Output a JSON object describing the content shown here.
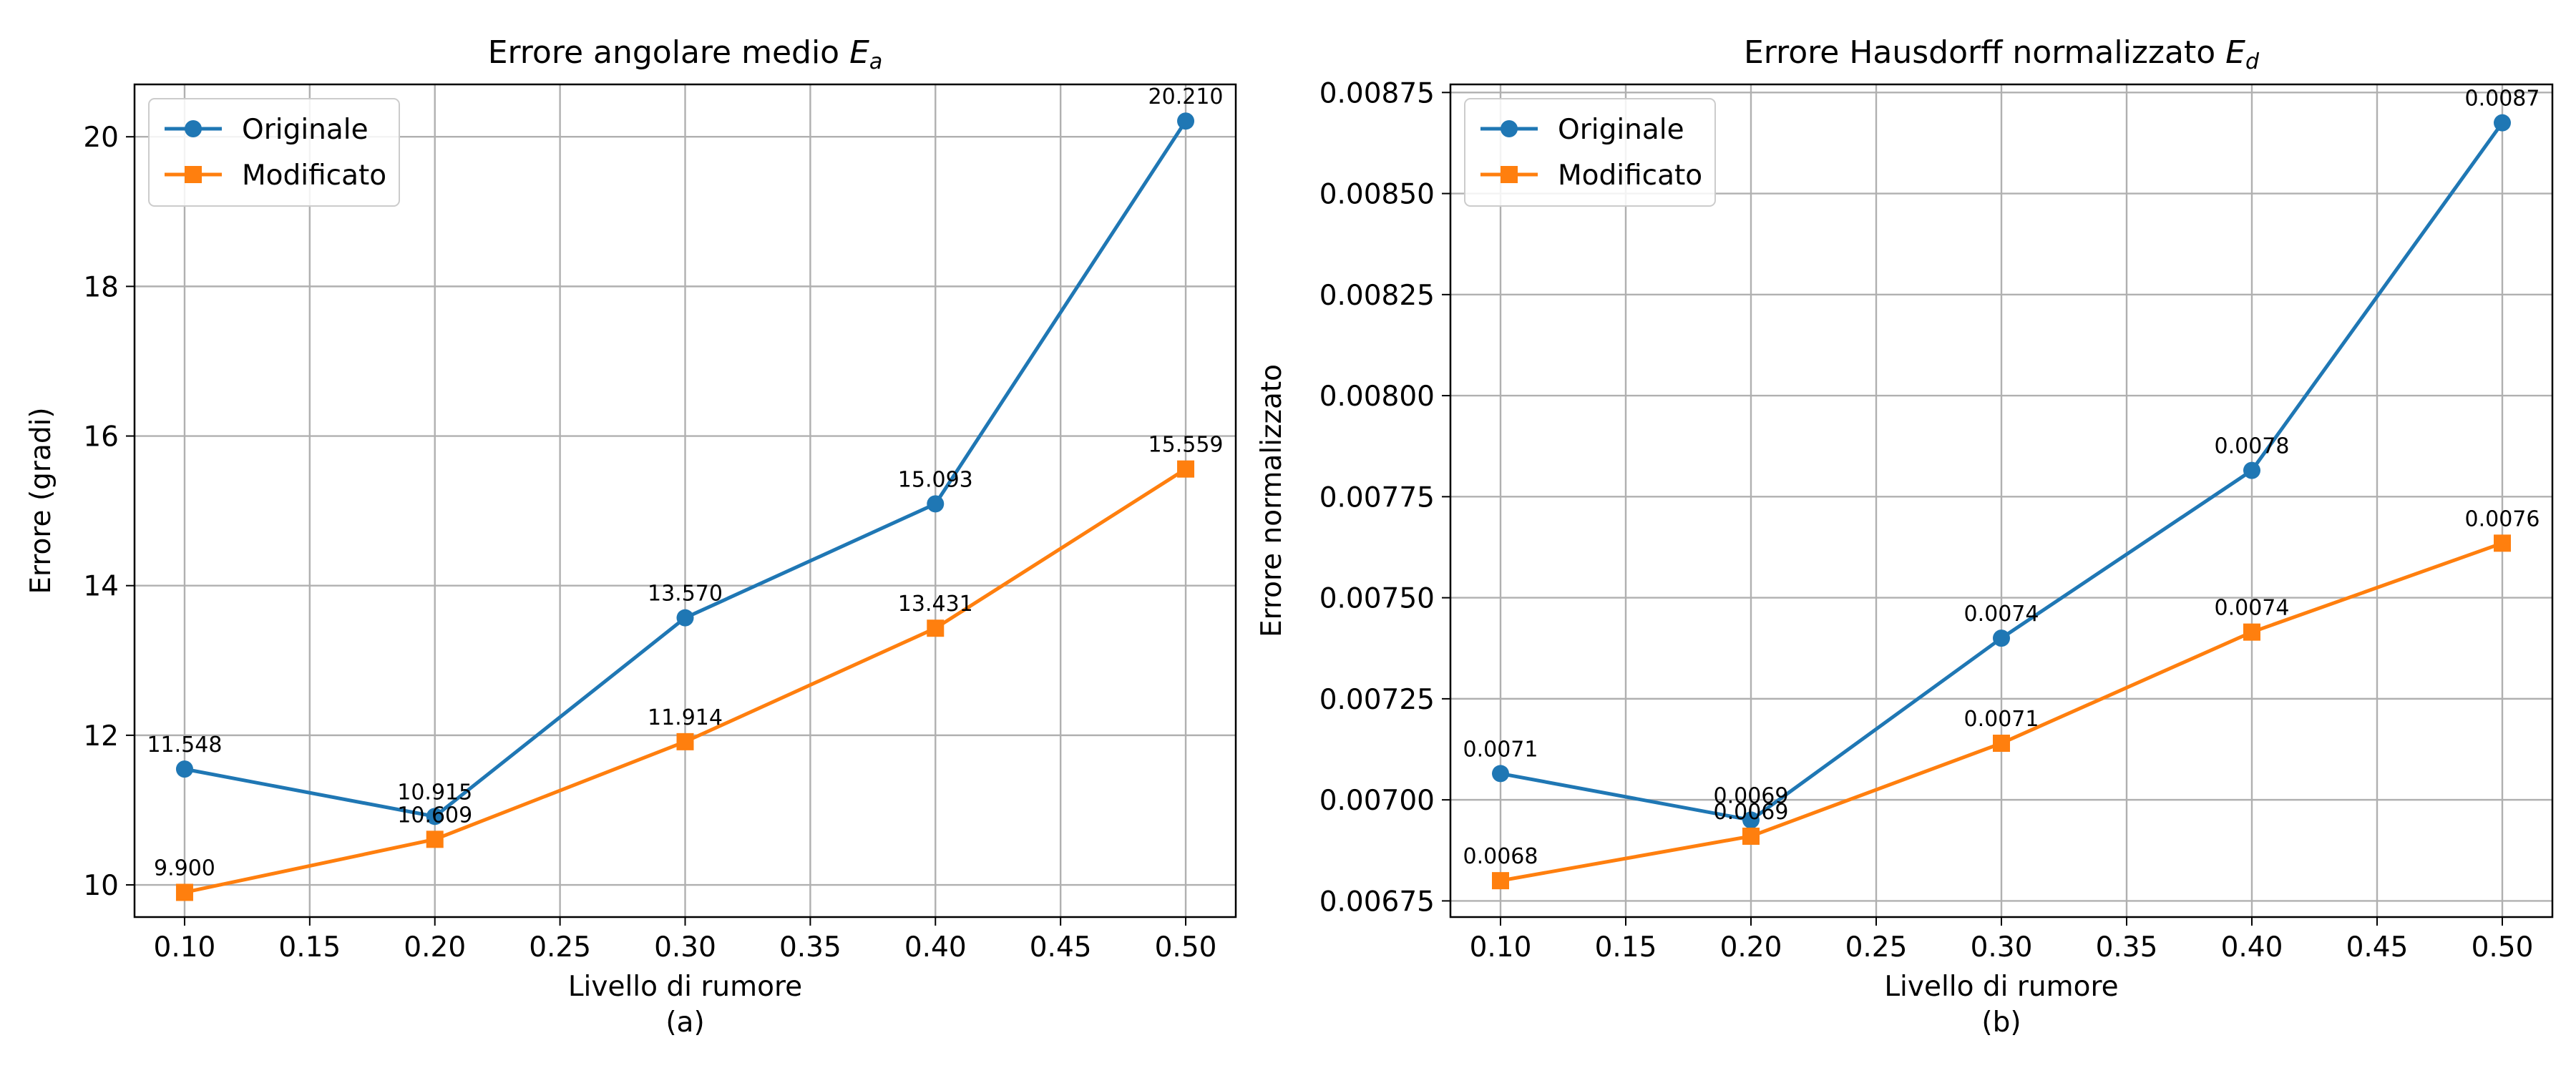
{
  "chart_data": [
    {
      "type": "line",
      "title": "Errore angolare medio",
      "title_var": "E",
      "title_sub": "a",
      "xlabel": "Livello di rumore",
      "ylabel": "Errore (gradi)",
      "caption": "(a)",
      "x": [
        0.1,
        0.2,
        0.3,
        0.4,
        0.5
      ],
      "xlim": [
        0.08,
        0.52
      ],
      "ylim": [
        9.57,
        20.7
      ],
      "xticks": [
        0.1,
        0.15,
        0.2,
        0.25,
        0.3,
        0.35,
        0.4,
        0.45,
        0.5
      ],
      "xtick_labels": [
        "0.10",
        "0.15",
        "0.20",
        "0.25",
        "0.30",
        "0.35",
        "0.40",
        "0.45",
        "0.50"
      ],
      "yticks": [
        10,
        12,
        14,
        16,
        18,
        20
      ],
      "ytick_labels": [
        "10",
        "12",
        "14",
        "16",
        "18",
        "20"
      ],
      "grid": true,
      "legend_position": "top-left",
      "series": [
        {
          "name": "Originale",
          "marker": "circle",
          "color": "#1f77b4",
          "values": [
            11.548,
            10.915,
            13.57,
            15.093,
            20.21
          ],
          "labels": [
            "11.548",
            "10.915",
            "13.570",
            "15.093",
            "20.210"
          ]
        },
        {
          "name": "Modificato",
          "marker": "square",
          "color": "#ff7f0e",
          "values": [
            9.9,
            10.609,
            11.914,
            13.431,
            15.559
          ],
          "labels": [
            "9.900",
            "10.609",
            "11.914",
            "13.431",
            "15.559"
          ]
        }
      ]
    },
    {
      "type": "line",
      "title": "Errore Hausdorff normalizzato",
      "title_var": "E",
      "title_sub": "d",
      "xlabel": "Livello di rumore",
      "ylabel": "Errore normalizzato",
      "caption": "(b)",
      "x": [
        0.1,
        0.2,
        0.3,
        0.4,
        0.5
      ],
      "xlim": [
        0.08,
        0.52
      ],
      "ylim": [
        0.00671,
        0.00877
      ],
      "xticks": [
        0.1,
        0.15,
        0.2,
        0.25,
        0.3,
        0.35,
        0.4,
        0.45,
        0.5
      ],
      "xtick_labels": [
        "0.10",
        "0.15",
        "0.20",
        "0.25",
        "0.30",
        "0.35",
        "0.40",
        "0.45",
        "0.50"
      ],
      "yticks": [
        0.00675,
        0.007,
        0.00725,
        0.0075,
        0.00775,
        0.008,
        0.00825,
        0.0085,
        0.00875
      ],
      "ytick_labels": [
        "0.00675",
        "0.00700",
        "0.00725",
        "0.00750",
        "0.00775",
        "0.00800",
        "0.00825",
        "0.00850",
        "0.00875"
      ],
      "grid": true,
      "legend_position": "top-left",
      "series": [
        {
          "name": "Originale",
          "marker": "circle",
          "color": "#1f77b4",
          "values": [
            0.007065,
            0.00695,
            0.0074,
            0.007815,
            0.008675
          ],
          "labels": [
            "0.0071",
            "0.0069",
            "0.0074",
            "0.0078",
            "0.0087"
          ]
        },
        {
          "name": "Modificato",
          "marker": "square",
          "color": "#ff7f0e",
          "values": [
            0.0068,
            0.00691,
            0.00714,
            0.007415,
            0.007635
          ],
          "labels": [
            "0.0068",
            "0.0069",
            "0.0071",
            "0.0074",
            "0.0076"
          ]
        }
      ]
    }
  ]
}
